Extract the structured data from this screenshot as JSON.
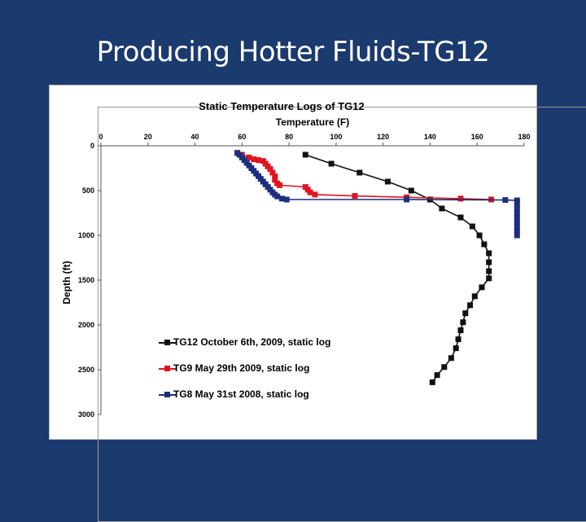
{
  "slide": {
    "title": "Producing Hotter Fluids-TG12"
  },
  "chart_data": {
    "type": "scatter",
    "title": "Static Temperature Logs of TG12",
    "xlabel": "Temperature (F)",
    "ylabel": "Depth (ft)",
    "x_axis_position": "top",
    "y_axis_inverted": true,
    "xlim": [
      0,
      180
    ],
    "ylim": [
      0,
      3000
    ],
    "xticks": [
      "0",
      "20",
      "40",
      "60",
      "80",
      "100",
      "120",
      "140",
      "160",
      "180"
    ],
    "yticks": [
      "0",
      "500",
      "1000",
      "1500",
      "2000",
      "2500",
      "3000"
    ],
    "grid": false,
    "legend": "center-left",
    "series": [
      {
        "name": "TG12 October 6th, 2009, static log",
        "color": "#111111",
        "points": [
          [
            87,
            100
          ],
          [
            98,
            200
          ],
          [
            110,
            300
          ],
          [
            122,
            400
          ],
          [
            132,
            500
          ],
          [
            140,
            600
          ],
          [
            145,
            700
          ],
          [
            153,
            800
          ],
          [
            158,
            900
          ],
          [
            161,
            1000
          ],
          [
            163,
            1100
          ],
          [
            165,
            1200
          ],
          [
            165,
            1300
          ],
          [
            165,
            1400
          ],
          [
            165,
            1480
          ],
          [
            162,
            1580
          ],
          [
            159,
            1680
          ],
          [
            157,
            1780
          ],
          [
            155,
            1870
          ],
          [
            154,
            1970
          ],
          [
            153,
            2060
          ],
          [
            152,
            2160
          ],
          [
            151,
            2260
          ],
          [
            149,
            2370
          ],
          [
            146,
            2470
          ],
          [
            143,
            2560
          ],
          [
            141,
            2640
          ]
        ]
      },
      {
        "name": "TG9 May 29th 2009, static log",
        "color": "#e0141e",
        "points": [
          [
            58,
            80
          ],
          [
            60,
            100
          ],
          [
            63,
            130
          ],
          [
            65,
            150
          ],
          [
            67,
            160
          ],
          [
            69,
            170
          ],
          [
            70,
            200
          ],
          [
            71,
            230
          ],
          [
            72,
            260
          ],
          [
            73,
            300
          ],
          [
            74,
            340
          ],
          [
            74,
            380
          ],
          [
            75,
            420
          ],
          [
            76,
            440
          ],
          [
            87,
            460
          ],
          [
            88,
            490
          ],
          [
            89,
            520
          ],
          [
            91,
            545
          ],
          [
            108,
            560
          ],
          [
            130,
            575
          ],
          [
            153,
            590
          ],
          [
            166,
            600
          ]
        ]
      },
      {
        "name": "TG8 May 31st 2008, static log",
        "color": "#1b2f7c",
        "points": [
          [
            58,
            80
          ],
          [
            59,
            100
          ],
          [
            60,
            130
          ],
          [
            61,
            160
          ],
          [
            62,
            190
          ],
          [
            63,
            220
          ],
          [
            64,
            250
          ],
          [
            65,
            280
          ],
          [
            66,
            310
          ],
          [
            67,
            340
          ],
          [
            68,
            370
          ],
          [
            69,
            400
          ],
          [
            70,
            430
          ],
          [
            71,
            460
          ],
          [
            72,
            490
          ],
          [
            73,
            520
          ],
          [
            74,
            545
          ],
          [
            75,
            565
          ],
          [
            77,
            590
          ],
          [
            79,
            600
          ],
          [
            130,
            600
          ],
          [
            172,
            605
          ],
          [
            177,
            610
          ],
          [
            177,
            650
          ],
          [
            177,
            700
          ],
          [
            177,
            750
          ],
          [
            177,
            800
          ],
          [
            177,
            850
          ],
          [
            177,
            900
          ],
          [
            177,
            950
          ],
          [
            177,
            1000
          ]
        ]
      }
    ]
  }
}
